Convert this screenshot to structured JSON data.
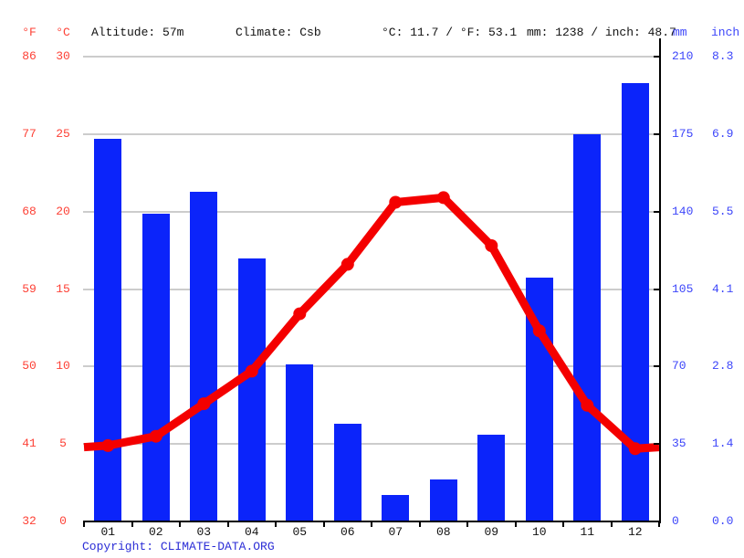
{
  "header": {
    "f_label": "°F",
    "c_label": "°C",
    "altitude": "Altitude: 57m",
    "climate": "Climate: Csb",
    "temp_summary": "°C: 11.7 / °F: 53.1",
    "precip_summary": "mm: 1238 / inch: 48.7",
    "mm_label": "mm",
    "inch_label": "inch"
  },
  "axes": {
    "fahrenheit_ticks": [
      "86",
      "77",
      "68",
      "59",
      "50",
      "41",
      "32"
    ],
    "celsius_ticks": [
      "30",
      "25",
      "20",
      "15",
      "10",
      "5",
      "0"
    ],
    "mm_ticks": [
      "210",
      "175",
      "140",
      "105",
      "70",
      "35",
      "0"
    ],
    "inch_ticks": [
      "8.3",
      "6.9",
      "5.5",
      "4.1",
      "2.8",
      "1.4",
      "0.0"
    ]
  },
  "chart_data": {
    "type": "bar+line",
    "categories": [
      "01",
      "02",
      "03",
      "04",
      "05",
      "06",
      "07",
      "08",
      "09",
      "10",
      "11",
      "12"
    ],
    "series": [
      {
        "name": "Precipitation (mm)",
        "type": "bar",
        "values": [
          173,
          139,
          149,
          119,
          71,
          44,
          12,
          19,
          39,
          110,
          175,
          198
        ]
      },
      {
        "name": "Temperature (°C)",
        "type": "line",
        "values": [
          4.9,
          5.5,
          7.6,
          9.7,
          13.4,
          16.6,
          20.6,
          20.9,
          17.8,
          12.3,
          7.5,
          4.7
        ]
      }
    ],
    "line_edge_values": {
      "start": 4.8,
      "end": 4.8
    },
    "ylim_temp_c": [
      0,
      30
    ],
    "ylim_precip_mm": [
      0,
      210
    ],
    "temp_axis_ticks_c": [
      30,
      25,
      20,
      15,
      10,
      5,
      0
    ],
    "precip_axis_ticks_mm": [
      210,
      175,
      140,
      105,
      70,
      35,
      0
    ],
    "grid": true,
    "legend": "none",
    "title": ""
  },
  "footer": {
    "copyright_prefix": "Copyright: ",
    "copyright_link": "CLIMATE-DATA.ORG"
  },
  "colors": {
    "bar_blue": "#0b24fa",
    "line_red": "#f40000",
    "temp_label_red": "#fd4136",
    "precip_label_blue": "#3d46fa",
    "copyright_blue": "#2b2dd6",
    "axis_black": "#000000",
    "gridline_gray": "#cccccc",
    "text_black": "#111111"
  }
}
